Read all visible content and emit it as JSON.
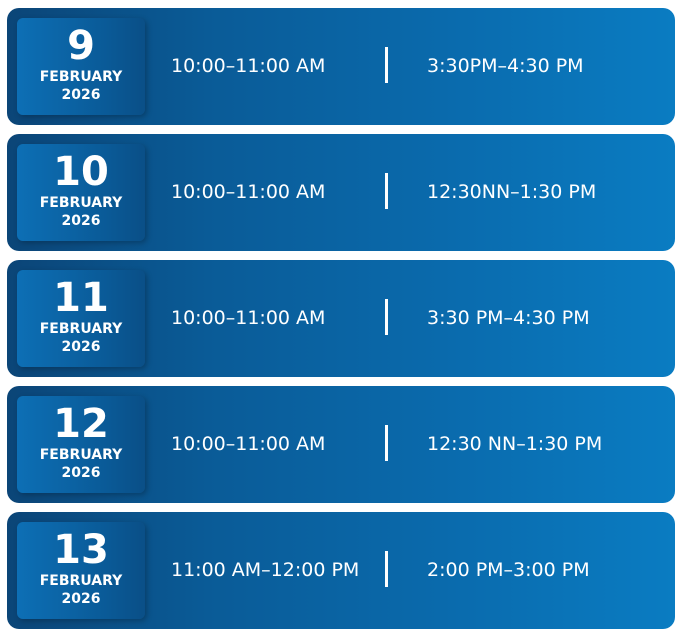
{
  "schedule": [
    {
      "day": "9",
      "month": "FEBRUARY",
      "year": "2026",
      "slot1": "10:00–11:00 AM",
      "slot2": "3:30PM–4:30 PM"
    },
    {
      "day": "10",
      "month": "FEBRUARY",
      "year": "2026",
      "slot1": "10:00–11:00 AM",
      "slot2": "12:30NN–1:30 PM"
    },
    {
      "day": "11",
      "month": "FEBRUARY",
      "year": "2026",
      "slot1": "10:00–11:00 AM",
      "slot2": "3:30 PM–4:30 PM"
    },
    {
      "day": "12",
      "month": "FEBRUARY",
      "year": "2026",
      "slot1": "10:00–11:00 AM",
      "slot2": "12:30 NN–1:30 PM"
    },
    {
      "day": "13",
      "month": "FEBRUARY",
      "year": "2026",
      "slot1": "11:00 AM–12:00 PM",
      "slot2": "2:00 PM–3:00 PM"
    }
  ],
  "colors": {
    "card_dark": "#0b4577",
    "card_light": "#0a7cc2",
    "text": "#ffffff"
  }
}
